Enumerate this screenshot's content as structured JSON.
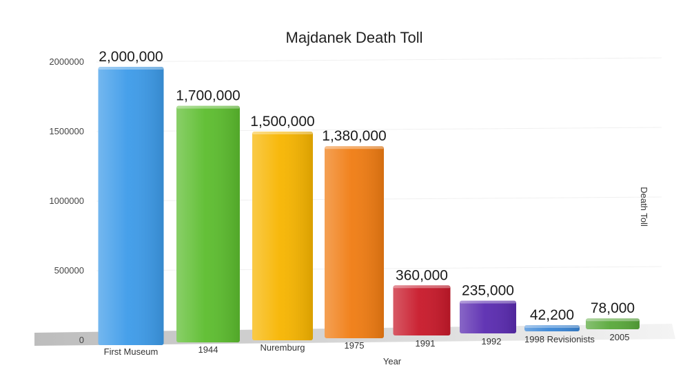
{
  "chart_data": {
    "type": "bar",
    "title": "Majdanek Death Toll",
    "xlabel": "Year",
    "ylabel": "Death Toll",
    "ylim": [
      0,
      2000000
    ],
    "yticks": [
      0,
      500000,
      1000000,
      1500000,
      2000000
    ],
    "ytick_labels": [
      "0",
      "500000",
      "1000000",
      "1500000",
      "2000000"
    ],
    "categories": [
      "First Museum",
      "1944",
      "Nuremburg",
      "1975",
      "1991",
      "1992",
      "1998 Revisionists",
      "2005"
    ],
    "values": [
      2000000,
      1700000,
      1500000,
      1380000,
      360000,
      235000,
      42200,
      78000
    ],
    "data_labels": [
      "2,000,000",
      "1,700,000",
      "1,500,000",
      "1,380,000",
      "360,000",
      "235,000",
      "42,200",
      "78,000"
    ],
    "colors": [
      "#3d9be9",
      "#5cbd2e",
      "#f7b500",
      "#f07c12",
      "#c8192a",
      "#5a2bb0",
      "#3a86d6",
      "#58a83a"
    ],
    "grid": true,
    "legend": "none"
  }
}
